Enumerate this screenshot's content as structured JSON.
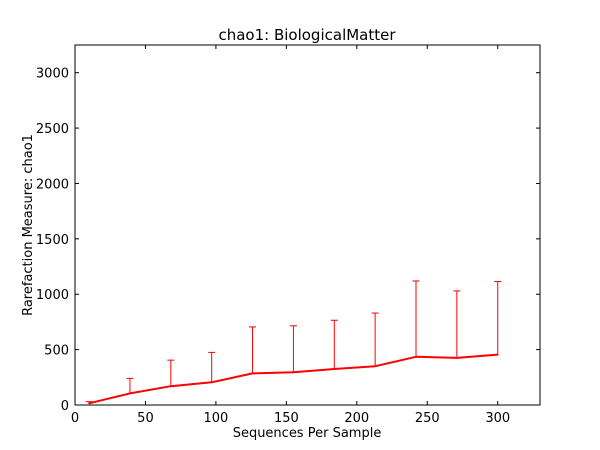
{
  "chart_data": {
    "type": "line",
    "title": "chao1: BiologicalMatter",
    "xlabel": "Sequences Per Sample",
    "ylabel": "Rarefaction Measure: chao1",
    "xlim": [
      0,
      330
    ],
    "ylim": [
      0,
      3250
    ],
    "xticks": [
      0,
      50,
      100,
      150,
      200,
      250,
      300
    ],
    "yticks": [
      0,
      500,
      1000,
      1500,
      2000,
      2500,
      3000
    ],
    "grid": false,
    "series": [
      {
        "color": "#ff0000",
        "x": [
          10,
          39,
          68,
          97,
          126,
          155,
          184,
          213,
          242,
          271,
          300
        ],
        "y": [
          15,
          105,
          170,
          205,
          285,
          295,
          325,
          350,
          435,
          425,
          455
        ],
        "err_upper": [
          30,
          240,
          405,
          475,
          705,
          715,
          765,
          830,
          1120,
          1030,
          1115
        ]
      }
    ]
  }
}
